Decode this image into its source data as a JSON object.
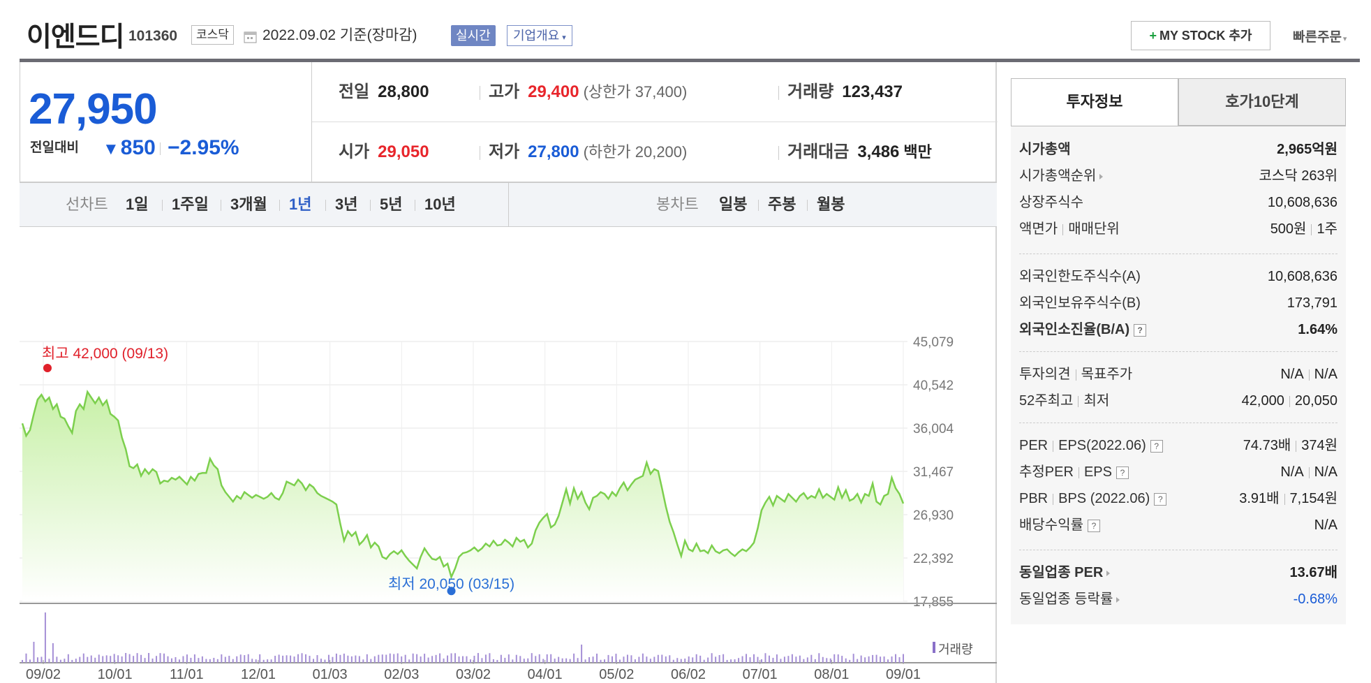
{
  "header": {
    "stock_name": "이엔드디",
    "stock_code": "101360",
    "market_badge": "코스닥",
    "date_text": "2022.09.02 기준(장마감)",
    "realtime_label": "실시간",
    "company_overview_label": "기업개요",
    "mystock_label": "MY STOCK 추가",
    "quick_order_label": "빠른주문"
  },
  "price": {
    "current": "27,950",
    "change_label": "전일대비",
    "change_value": "850",
    "change_percent": "−2.95%"
  },
  "quote": {
    "prev_close_label": "전일",
    "prev_close": "28,800",
    "high_label": "고가",
    "high": "29,400",
    "upper_limit": "(상한가 37,400)",
    "volume_label": "거래량",
    "volume": "123,437",
    "open_label": "시가",
    "open": "29,050",
    "low_label": "저가",
    "low": "27,800",
    "lower_limit": "(하한가 20,200)",
    "amount_label": "거래대금",
    "amount": "3,486",
    "amount_unit": "백만"
  },
  "periods": {
    "line_label": "선차트",
    "line_items": [
      "1일",
      "1주일",
      "3개월",
      "1년",
      "3년",
      "5년",
      "10년"
    ],
    "active": "1년",
    "candle_label": "봉차트",
    "candle_items": [
      "일봉",
      "주봉",
      "월봉"
    ]
  },
  "chart_data": {
    "type": "area",
    "y_ticks": [
      "45,079",
      "40,542",
      "36,004",
      "31,467",
      "26,930",
      "22,392",
      "17,855"
    ],
    "ylim": [
      17855,
      45079
    ],
    "x_ticks": [
      "09/02",
      "10/01",
      "11/01",
      "12/01",
      "01/03",
      "02/03",
      "03/02",
      "04/01",
      "05/02",
      "06/02",
      "07/01",
      "08/01",
      "09/01"
    ],
    "max_label": "최고 42,000 (09/13)",
    "min_label": "최저 20,050 (03/15)",
    "volume_legend": "거래량",
    "line_color": "#7ccf4d",
    "fill_color": "#c8f0a8",
    "high_color": "#e0202a",
    "low_color": "#2a6fd6",
    "price_series": [
      36500,
      35200,
      35800,
      37500,
      39000,
      39500,
      38800,
      39200,
      38000,
      38500,
      37200,
      37000,
      36200,
      35500,
      37800,
      38500,
      38000,
      39800,
      39200,
      38600,
      39200,
      38400,
      38900,
      37500,
      37200,
      36800,
      35000,
      33800,
      32000,
      31800,
      32200,
      31000,
      31700,
      31200,
      31700,
      31400,
      30200,
      30500,
      30400,
      30800,
      30600,
      30900,
      30500,
      30100,
      30900,
      30500,
      31200,
      31300,
      31300,
      32800,
      32100,
      31700,
      30000,
      29300,
      28800,
      28300,
      28900,
      28600,
      29300,
      29000,
      28700,
      29000,
      28800,
      28600,
      28800,
      29200,
      28700,
      28500,
      29200,
      30400,
      30200,
      30000,
      30600,
      30200,
      29500,
      30100,
      29800,
      29200,
      28900,
      28700,
      28500,
      28300,
      28000,
      26000,
      24200,
      25200,
      24700,
      25100,
      23800,
      24200,
      24800,
      23500,
      24000,
      23600,
      22500,
      22300,
      22800,
      23100,
      22800,
      23200,
      22600,
      22100,
      21700,
      21300,
      22500,
      23400,
      22800,
      22300,
      22200,
      22500,
      21500,
      21800,
      20400,
      21300,
      22500,
      22900,
      23000,
      23200,
      23500,
      23100,
      23400,
      23900,
      23600,
      24200,
      23700,
      23800,
      24300,
      24000,
      23600,
      24500,
      24100,
      24300,
      23500,
      23900,
      25300,
      26100,
      26600,
      27000,
      25600,
      25900,
      26800,
      28200,
      29600,
      28100,
      29700,
      28600,
      29300,
      28200,
      27500,
      28700,
      28900,
      29300,
      29100,
      28600,
      29300,
      28900,
      29700,
      30300,
      29500,
      30100,
      30600,
      30800,
      31000,
      32400,
      31200,
      31700,
      31500,
      29700,
      27800,
      26200,
      25100,
      23800,
      22600,
      24200,
      23300,
      23100,
      23900,
      23100,
      23200,
      22900,
      23700,
      23100,
      22900,
      23200,
      23300,
      22900,
      22600,
      23000,
      23300,
      23100,
      23500,
      24000,
      25500,
      27400,
      28200,
      28800,
      27900,
      28900,
      28600,
      28300,
      29100,
      28700,
      28300,
      28900,
      29200,
      28600,
      28900,
      28700,
      29600,
      28700,
      29100,
      28800,
      28500,
      29800,
      28700,
      29500,
      28400,
      28600,
      29100,
      28200,
      29100,
      28900,
      30200,
      28300,
      28000,
      28900,
      29100,
      30800,
      29700,
      29100,
      28100
    ]
  },
  "info": {
    "tab_invest": "투자정보",
    "tab_hoga": "호가10단계",
    "mktcap_label": "시가총액",
    "mktcap": "2,965억원",
    "rank_label": "시가총액순위",
    "rank": "코스닥 263위",
    "shares_label": "상장주식수",
    "shares": "10,608,636",
    "par_label": "액면가",
    "unit_label": "매매단위",
    "par": "500원",
    "unit": "1주",
    "foreign_limit_label": "외국인한도주식수(A)",
    "foreign_limit": "10,608,636",
    "foreign_hold_label": "외국인보유주식수(B)",
    "foreign_hold": "173,791",
    "foreign_ratio_label": "외국인소진율(B/A)",
    "foreign_ratio": "1.64%",
    "opinion_label": "투자의견",
    "target_label": "목표주가",
    "opinion": "N/A",
    "target": "N/A",
    "high52_label": "52주최고",
    "low52_label": "최저",
    "high52": "42,000",
    "low52": "20,050",
    "per_label": "PER",
    "eps_label": "EPS(2022.06)",
    "per": "74.73배",
    "eps": "374원",
    "est_per_label": "추정PER",
    "est_eps_label": "EPS",
    "est_per": "N/A",
    "est_eps": "N/A",
    "pbr_label": "PBR",
    "bps_label": "BPS (2022.06)",
    "pbr": "3.91배",
    "bps": "7,154원",
    "div_label": "배당수익률",
    "div": "N/A",
    "sector_per_label": "동일업종 PER",
    "sector_per": "13.67배",
    "sector_chg_label": "동일업종 등락률",
    "sector_chg": "-0.68%"
  }
}
